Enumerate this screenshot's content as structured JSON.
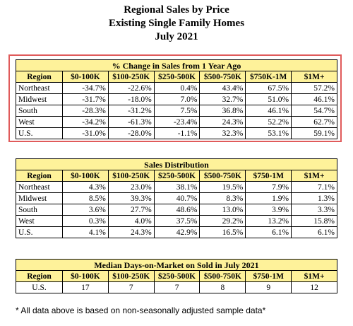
{
  "title": {
    "line1": "Regional Sales by Price",
    "line2": "Existing Single Family Homes",
    "line3": "July 2021"
  },
  "columns": [
    "Region",
    "$0-100K",
    "$100-250K",
    "$250-500K",
    "$500-750K",
    "$750K-1M",
    "$1M+"
  ],
  "pct_change": {
    "caption": "% Change in Sales from 1 Year Ago",
    "columns": [
      "Region",
      "$0-100K",
      "$100-250K",
      "$250-500K",
      "$500-750K",
      "$750K-1M",
      "$1M+"
    ],
    "rows": [
      [
        "Northeast",
        "-34.7%",
        "-22.6%",
        "0.4%",
        "43.4%",
        "67.5%",
        "57.2%"
      ],
      [
        "Midwest",
        "-31.7%",
        "-18.0%",
        "7.0%",
        "32.7%",
        "51.0%",
        "46.1%"
      ],
      [
        "South",
        "-28.3%",
        "-31.2%",
        "7.5%",
        "36.8%",
        "46.1%",
        "54.7%"
      ],
      [
        "West",
        "-34.2%",
        "-61.3%",
        "-23.4%",
        "24.3%",
        "52.2%",
        "62.7%"
      ],
      [
        "U.S.",
        "-31.0%",
        "-28.0%",
        "-1.1%",
        "32.3%",
        "53.1%",
        "59.1%"
      ]
    ]
  },
  "distribution": {
    "caption": "Sales Distribution",
    "columns": [
      "Region",
      "$0-100K",
      "$100-250K",
      "$250-500K",
      "$500-750K",
      "$750-1M",
      "$1M+"
    ],
    "rows": [
      [
        "Northeast",
        "4.3%",
        "23.0%",
        "38.1%",
        "19.5%",
        "7.9%",
        "7.1%"
      ],
      [
        "Midwest",
        "8.5%",
        "39.3%",
        "40.7%",
        "8.3%",
        "1.9%",
        "1.3%"
      ],
      [
        "South",
        "3.6%",
        "27.7%",
        "48.6%",
        "13.0%",
        "3.9%",
        "3.3%"
      ],
      [
        "West",
        "0.3%",
        "4.0%",
        "37.5%",
        "29.2%",
        "13.2%",
        "15.8%"
      ],
      [
        "U.S.",
        "4.1%",
        "24.3%",
        "42.9%",
        "16.5%",
        "6.1%",
        "6.1%"
      ]
    ]
  },
  "days_on_market": {
    "caption": "Median Days-on-Market on Sold in July 2021",
    "columns": [
      "Region",
      "$0-100K",
      "$100-250K",
      "$250-500K",
      "$500-750K",
      "$750-1M",
      "$1M+"
    ],
    "rows": [
      [
        "U.S.",
        "17",
        "7",
        "7",
        "8",
        "9",
        "12"
      ]
    ]
  },
  "footnote": "* All data above is based on non-seasonally adjusted sample data*",
  "colors": {
    "header_fill": "#fef29a",
    "highlight_border": "#e05a5a"
  }
}
